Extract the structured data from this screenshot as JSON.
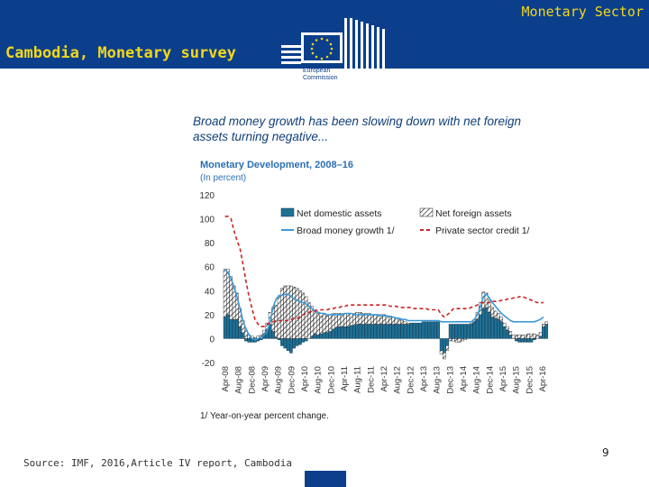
{
  "header": {
    "section_title": "Monetary Sector",
    "slide_title": "Cambodia, Monetary survey",
    "logo_text_line1": "European",
    "logo_text_line2": "Commission"
  },
  "figure": {
    "heading": "Broad money growth has been slowing down with net foreign assets turning negative..."
  },
  "chart_data": {
    "type": "bar",
    "title": "Monetary Development, 2008–16",
    "subtitle": "(In percent)",
    "footnote": "1/ Year-on-year percent change.",
    "ylim": [
      -20,
      120
    ],
    "yticks": [
      -20,
      0,
      20,
      40,
      60,
      80,
      100,
      120
    ],
    "xtick_labels": [
      "Apr-08",
      "Aug-08",
      "Dec-08",
      "Apr-09",
      "Aug-09",
      "Dec-09",
      "Apr-10",
      "Aug-10",
      "Dec-10",
      "Apr-11",
      "Aug-11",
      "Dec-11",
      "Apr-12",
      "Aug-12",
      "Dec-12",
      "Apr-13",
      "Aug-13",
      "Dec-13",
      "Apr-14",
      "Aug-14",
      "Dec-14",
      "Apr-15",
      "Aug-15",
      "Dec-15",
      "Apr-16"
    ],
    "legend": [
      "Net domestic assets",
      "Net foreign assets",
      "Broad money growth 1/",
      "Private sector credit 1/"
    ],
    "colors": {
      "nda": "#1f6f94",
      "nfa_hatch": "#222222",
      "broad_money": "#3b9ad8",
      "private_credit": "#cc2222"
    },
    "series": [
      {
        "name": "Net domestic assets",
        "kind": "bar",
        "values": [
          18,
          20,
          16,
          16,
          16,
          10,
          5,
          -2,
          -3,
          -3,
          -3,
          -2,
          -1,
          3,
          8,
          12,
          6,
          1,
          -1,
          -6,
          -8,
          -10,
          -12,
          -8,
          -6,
          -5,
          -3,
          -2,
          0,
          2,
          4,
          3,
          4,
          5,
          5,
          6,
          8,
          9,
          10,
          10,
          10,
          10,
          11,
          11,
          12,
          12,
          12,
          12,
          12,
          12,
          12,
          12,
          12,
          12,
          12,
          12,
          12,
          12,
          12,
          12,
          12,
          12,
          13,
          13,
          13,
          13,
          14,
          14,
          14,
          14,
          14,
          14,
          -10,
          -12,
          -6,
          12,
          12,
          12,
          12,
          12,
          12,
          12,
          12,
          14,
          16,
          20,
          25,
          26,
          22,
          18,
          17,
          16,
          14,
          10,
          7,
          3,
          0,
          -2,
          -3,
          -3,
          -3,
          -3,
          -3,
          -1,
          0,
          2,
          10,
          12
        ]
      },
      {
        "name": "Net foreign assets",
        "kind": "bar",
        "values": [
          40,
          38,
          36,
          28,
          22,
          15,
          10,
          7,
          3,
          2,
          1,
          2,
          3,
          4,
          5,
          10,
          20,
          27,
          35,
          42,
          44,
          44,
          44,
          43,
          42,
          40,
          38,
          35,
          30,
          25,
          20,
          18,
          15,
          15,
          14,
          14,
          13,
          12,
          11,
          11,
          11,
          11,
          10,
          10,
          10,
          10,
          9,
          9,
          9,
          8,
          8,
          8,
          8,
          8,
          7,
          7,
          6,
          5,
          4,
          3,
          2,
          1,
          0,
          0,
          0,
          0,
          0,
          0,
          0,
          0,
          0,
          0,
          -3,
          -5,
          -4,
          -2,
          -2,
          -3,
          -3,
          -2,
          -1,
          0,
          1,
          2,
          6,
          10,
          14,
          12,
          10,
          8,
          6,
          5,
          4,
          3,
          3,
          3,
          3,
          3,
          3,
          3,
          3,
          4,
          4,
          4,
          3,
          3,
          2,
          2,
          2
        ]
      },
      {
        "name": "Broad money growth 1/",
        "kind": "line",
        "values": [
          58,
          55,
          50,
          43,
          35,
          25,
          15,
          8,
          3,
          0,
          -1,
          0,
          1,
          3,
          6,
          14,
          26,
          33,
          36,
          36,
          37,
          37,
          35,
          33,
          32,
          31,
          30,
          29,
          27,
          25,
          23,
          22,
          21,
          21,
          20,
          20,
          20,
          20,
          20,
          20,
          21,
          21,
          21,
          20,
          20,
          20,
          20,
          20,
          20,
          20,
          20,
          20,
          19,
          19,
          19,
          18,
          18,
          17,
          17,
          16,
          16,
          15,
          15,
          15,
          15,
          15,
          15,
          15,
          15,
          15,
          15,
          15,
          14,
          14,
          14,
          14,
          14,
          14,
          14,
          14,
          14,
          14,
          14,
          16,
          20,
          26,
          35,
          37,
          34,
          30,
          27,
          24,
          21,
          19,
          17,
          15,
          14,
          14,
          14,
          14,
          14,
          14,
          14,
          14,
          15,
          16,
          18
        ]
      },
      {
        "name": "Private sector credit 1/",
        "kind": "line",
        "values": [
          102,
          102,
          100,
          90,
          82,
          75,
          62,
          48,
          35,
          25,
          16,
          12,
          10,
          10,
          12,
          13,
          14,
          15,
          15,
          15,
          15,
          15,
          16,
          17,
          17,
          18,
          20,
          21,
          22,
          23,
          23,
          24,
          24,
          24,
          24,
          25,
          25,
          26,
          26,
          27,
          27,
          28,
          28,
          28,
          28,
          28,
          28,
          28,
          28,
          28,
          28,
          28,
          28,
          28,
          28,
          27,
          27,
          27,
          26,
          26,
          26,
          26,
          26,
          25,
          25,
          25,
          25,
          25,
          24,
          24,
          24,
          24,
          20,
          18,
          20,
          22,
          25,
          25,
          25,
          25,
          25,
          25,
          26,
          27,
          28,
          30,
          30,
          30,
          30,
          31,
          31,
          31,
          32,
          32,
          33,
          33,
          34,
          34,
          35,
          35,
          34,
          33,
          32,
          31,
          30,
          30,
          30
        ]
      }
    ]
  }
}
